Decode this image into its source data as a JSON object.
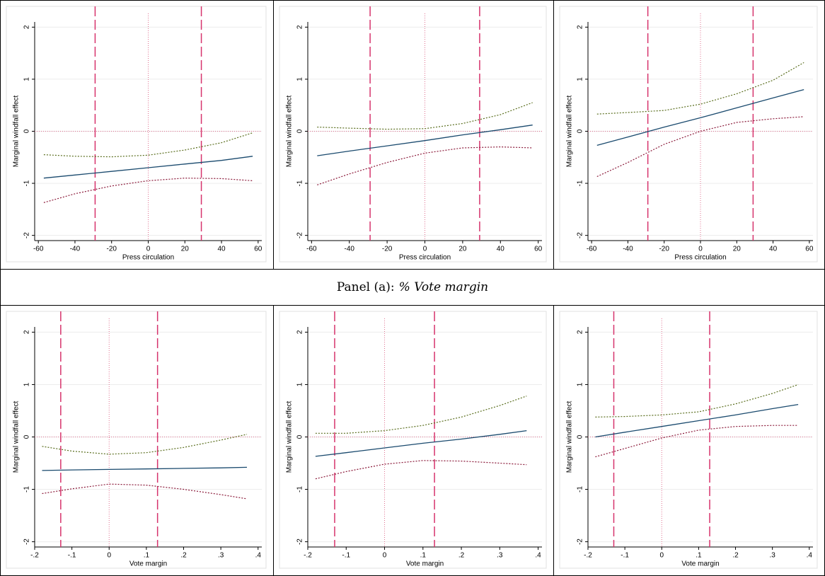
{
  "panel_caption": {
    "prefix": "Panel (a):",
    "title": "% Vote margin"
  },
  "chart_data": [
    {
      "type": "line",
      "xlabel": "Press circulation",
      "ylabel": "Marginal windfall effect",
      "x": [
        -57,
        -40,
        -20,
        0,
        20,
        40,
        57
      ],
      "series": [
        {
          "color": "#5a6e1e",
          "style": "dotted",
          "values": [
            -0.45,
            -0.48,
            -0.49,
            -0.46,
            -0.36,
            -0.22,
            -0.03
          ]
        },
        {
          "color": "#1a4a6e",
          "style": "solid",
          "values": [
            -0.9,
            -0.84,
            -0.77,
            -0.7,
            -0.63,
            -0.56,
            -0.48
          ]
        },
        {
          "color": "#8b1a3a",
          "style": "dotted",
          "values": [
            -1.37,
            -1.2,
            -1.05,
            -0.95,
            -0.9,
            -0.91,
            -0.95
          ]
        }
      ],
      "xlim": [
        -62,
        62
      ],
      "ylim": [
        -2.1,
        2.1
      ],
      "xticks": [
        -60,
        -40,
        -20,
        0,
        20,
        40,
        60
      ],
      "yticks": [
        -2,
        -1,
        0,
        1,
        2
      ],
      "grid": true,
      "vlines": [
        -29,
        29
      ],
      "vline_color": "#d6336c",
      "xref": 0,
      "yref": 0,
      "ref_color": "#e07090"
    },
    {
      "type": "line",
      "xlabel": "Press circulation",
      "ylabel": "Marginal windfall effect",
      "x": [
        -57,
        -40,
        -20,
        0,
        20,
        40,
        57
      ],
      "series": [
        {
          "color": "#5a6e1e",
          "style": "dotted",
          "values": [
            0.08,
            0.06,
            0.04,
            0.05,
            0.15,
            0.32,
            0.55
          ]
        },
        {
          "color": "#1a4a6e",
          "style": "solid",
          "values": [
            -0.47,
            -0.38,
            -0.28,
            -0.18,
            -0.07,
            0.03,
            0.12
          ]
        },
        {
          "color": "#8b1a3a",
          "style": "dotted",
          "values": [
            -1.03,
            -0.82,
            -0.6,
            -0.42,
            -0.32,
            -0.3,
            -0.32
          ]
        }
      ],
      "xlim": [
        -62,
        62
      ],
      "ylim": [
        -2.1,
        2.1
      ],
      "xticks": [
        -60,
        -40,
        -20,
        0,
        20,
        40,
        60
      ],
      "yticks": [
        -2,
        -1,
        0,
        1,
        2
      ],
      "grid": true,
      "vlines": [
        -29,
        29
      ],
      "vline_color": "#d6336c",
      "xref": 0,
      "yref": 0,
      "ref_color": "#e07090"
    },
    {
      "type": "line",
      "xlabel": "Press circulation",
      "ylabel": "Marginal windfall effect",
      "x": [
        -57,
        -40,
        -20,
        0,
        20,
        40,
        57
      ],
      "series": [
        {
          "color": "#5a6e1e",
          "style": "dotted",
          "values": [
            0.33,
            0.36,
            0.4,
            0.52,
            0.72,
            0.98,
            1.32
          ]
        },
        {
          "color": "#1a4a6e",
          "style": "solid",
          "values": [
            -0.27,
            -0.11,
            0.08,
            0.26,
            0.45,
            0.64,
            0.8
          ]
        },
        {
          "color": "#8b1a3a",
          "style": "dotted",
          "values": [
            -0.87,
            -0.6,
            -0.25,
            0,
            0.17,
            0.24,
            0.28
          ]
        }
      ],
      "xlim": [
        -62,
        62
      ],
      "ylim": [
        -2.1,
        2.1
      ],
      "xticks": [
        -60,
        -40,
        -20,
        0,
        20,
        40,
        60
      ],
      "yticks": [
        -2,
        -1,
        0,
        1,
        2
      ],
      "grid": true,
      "vlines": [
        -29,
        29
      ],
      "vline_color": "#d6336c",
      "xref": 0,
      "yref": 0,
      "ref_color": "#e07090"
    },
    {
      "type": "line",
      "xlabel": "Vote margin",
      "ylabel": "Marginal windfall effect",
      "x": [
        -0.18,
        -0.1,
        0,
        0.1,
        0.2,
        0.3,
        0.37
      ],
      "series": [
        {
          "color": "#5a6e1e",
          "style": "dotted",
          "values": [
            -0.18,
            -0.27,
            -0.33,
            -0.3,
            -0.2,
            -0.06,
            0.05
          ]
        },
        {
          "color": "#1a4a6e",
          "style": "solid",
          "values": [
            -0.64,
            -0.63,
            -0.62,
            -0.61,
            -0.6,
            -0.59,
            -0.58
          ]
        },
        {
          "color": "#8b1a3a",
          "style": "dotted",
          "values": [
            -1.08,
            -0.99,
            -0.9,
            -0.92,
            -1.0,
            -1.1,
            -1.18
          ]
        }
      ],
      "xlim": [
        -0.2,
        0.41
      ],
      "ylim": [
        -2.1,
        2.1
      ],
      "xticks": [
        {
          "value": -0.2,
          "label": "-.2"
        },
        {
          "value": -0.1,
          "label": "-.1"
        },
        0,
        {
          "value": 0.1,
          "label": ".1"
        },
        {
          "value": 0.2,
          "label": ".2"
        },
        {
          "value": 0.3,
          "label": ".3"
        },
        {
          "value": 0.4,
          "label": ".4"
        }
      ],
      "yticks": [
        -2,
        -1,
        0,
        1,
        2
      ],
      "grid": true,
      "vlines": [
        -0.13,
        0.13
      ],
      "vline_color": "#d6336c",
      "xref": 0,
      "yref": 0,
      "ref_color": "#e07090"
    },
    {
      "type": "line",
      "xlabel": "Vote margin",
      "ylabel": "Marginal windfall effect",
      "x": [
        -0.18,
        -0.1,
        0,
        0.1,
        0.2,
        0.3,
        0.37
      ],
      "series": [
        {
          "color": "#5a6e1e",
          "style": "dotted",
          "values": [
            0.07,
            0.07,
            0.12,
            0.22,
            0.38,
            0.6,
            0.78
          ]
        },
        {
          "color": "#1a4a6e",
          "style": "solid",
          "values": [
            -0.37,
            -0.3,
            -0.21,
            -0.12,
            -0.04,
            0.05,
            0.12
          ]
        },
        {
          "color": "#8b1a3a",
          "style": "dotted",
          "values": [
            -0.8,
            -0.66,
            -0.52,
            -0.45,
            -0.46,
            -0.5,
            -0.53
          ]
        }
      ],
      "xlim": [
        -0.2,
        0.41
      ],
      "ylim": [
        -2.1,
        2.1
      ],
      "xticks": [
        {
          "value": -0.2,
          "label": "-.2"
        },
        {
          "value": -0.1,
          "label": "-.1"
        },
        0,
        {
          "value": 0.1,
          "label": ".1"
        },
        {
          "value": 0.2,
          "label": ".2"
        },
        {
          "value": 0.3,
          "label": ".3"
        },
        {
          "value": 0.4,
          "label": ".4"
        }
      ],
      "yticks": [
        -2,
        -1,
        0,
        1,
        2
      ],
      "grid": true,
      "vlines": [
        -0.13,
        0.13
      ],
      "vline_color": "#d6336c",
      "xref": 0,
      "yref": 0,
      "ref_color": "#e07090"
    },
    {
      "type": "line",
      "xlabel": "Vote margin",
      "ylabel": "Marginal windfall effect",
      "x": [
        -0.18,
        -0.1,
        0,
        0.1,
        0.2,
        0.3,
        0.37
      ],
      "series": [
        {
          "color": "#5a6e1e",
          "style": "dotted",
          "values": [
            0.38,
            0.39,
            0.42,
            0.48,
            0.63,
            0.83,
            1.0
          ]
        },
        {
          "color": "#1a4a6e",
          "style": "solid",
          "values": [
            0,
            0.09,
            0.2,
            0.31,
            0.42,
            0.54,
            0.62
          ]
        },
        {
          "color": "#8b1a3a",
          "style": "dotted",
          "values": [
            -0.38,
            -0.22,
            -0.02,
            0.13,
            0.2,
            0.22,
            0.22
          ]
        }
      ],
      "xlim": [
        -0.2,
        0.41
      ],
      "ylim": [
        -2.1,
        2.1
      ],
      "xticks": [
        {
          "value": -0.2,
          "label": "-.2"
        },
        {
          "value": -0.1,
          "label": "-.1"
        },
        0,
        {
          "value": 0.1,
          "label": ".1"
        },
        {
          "value": 0.2,
          "label": ".2"
        },
        {
          "value": 0.3,
          "label": ".3"
        },
        {
          "value": 0.4,
          "label": ".4"
        }
      ],
      "yticks": [
        -2,
        -1,
        0,
        1,
        2
      ],
      "grid": true,
      "vlines": [
        -0.13,
        0.13
      ],
      "vline_color": "#d6336c",
      "xref": 0,
      "yref": 0,
      "ref_color": "#e07090"
    }
  ]
}
